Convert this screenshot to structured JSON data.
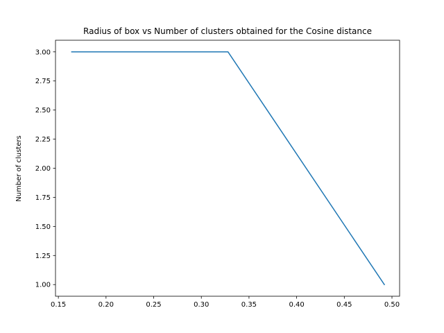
{
  "chart_data": {
    "type": "line",
    "title": "Radius of box vs Number of clusters obtained for the Cosine distance",
    "xlabel": "",
    "ylabel": "Number of clusters",
    "xlim": [
      0.147,
      0.508
    ],
    "ylim": [
      0.9,
      3.1
    ],
    "xticks": [
      0.15,
      0.2,
      0.25,
      0.3,
      0.35,
      0.4,
      0.45,
      0.5
    ],
    "xtick_labels": [
      "0.15",
      "0.20",
      "0.25",
      "0.30",
      "0.35",
      "0.40",
      "0.45",
      "0.50"
    ],
    "yticks": [
      1.0,
      1.25,
      1.5,
      1.75,
      2.0,
      2.25,
      2.5,
      2.75,
      3.0
    ],
    "ytick_labels": [
      "1.00",
      "1.25",
      "1.50",
      "1.75",
      "2.00",
      "2.25",
      "2.50",
      "2.75",
      "3.00"
    ],
    "grid": false,
    "series": [
      {
        "color": "#1f77b4",
        "x": [
          0.164,
          0.328,
          0.492
        ],
        "values": [
          3,
          3,
          1
        ]
      }
    ]
  }
}
